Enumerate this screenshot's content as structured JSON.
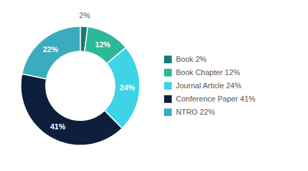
{
  "chart_data": {
    "type": "donut",
    "categories": [
      "Book 2%",
      "Book Chapter 12%",
      "Journal Article 24%",
      "Conference Paper 41%",
      "NTRO 22%"
    ],
    "values": [
      2,
      12,
      24,
      41,
      22
    ],
    "value_labels": [
      "2%",
      "12%",
      "24%",
      "41%",
      "22%"
    ],
    "colors": [
      "#1a7a6e",
      "#2db899",
      "#3dd4e8",
      "#0d1f3c",
      "#3aacbe"
    ],
    "data_labels": true,
    "legend": "right"
  }
}
